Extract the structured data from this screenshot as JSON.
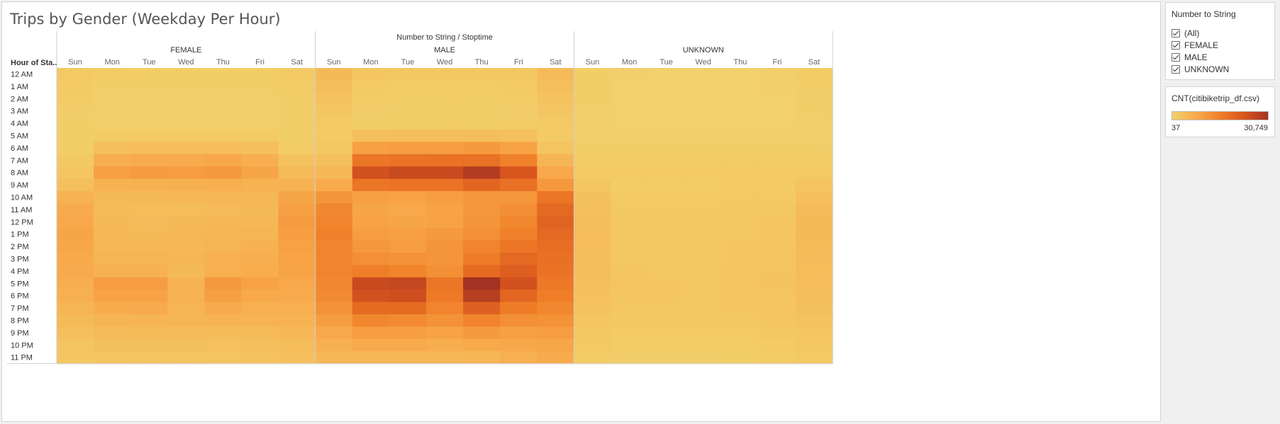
{
  "title": "Trips by Gender (Weekday Per Hour)",
  "chart_data": {
    "type": "heatmap",
    "title": "Trips by Gender (Weekday Per Hour)",
    "column_header": "Number to String / Stoptime",
    "row_header": "Hour of Sta..",
    "groups": [
      "FEMALE",
      "MALE",
      "UNKNOWN"
    ],
    "days": [
      "Sun",
      "Mon",
      "Tue",
      "Wed",
      "Thu",
      "Fri",
      "Sat"
    ],
    "hours": [
      "12 AM",
      "1 AM",
      "2 AM",
      "3 AM",
      "4 AM",
      "5 AM",
      "6 AM",
      "7 AM",
      "8 AM",
      "9 AM",
      "10 AM",
      "11 AM",
      "12 PM",
      "1 PM",
      "2 PM",
      "3 PM",
      "4 PM",
      "5 PM",
      "6 PM",
      "7 PM",
      "8 PM",
      "9 PM",
      "10 PM",
      "11 PM"
    ],
    "value_range": [
      37,
      30749
    ],
    "values": {
      "FEMALE": [
        [
          1500,
          900,
          700,
          700,
          700,
          700,
          1300
        ],
        [
          1200,
          500,
          400,
          400,
          400,
          500,
          1000
        ],
        [
          900,
          300,
          300,
          300,
          300,
          300,
          700
        ],
        [
          600,
          200,
          200,
          200,
          200,
          200,
          500
        ],
        [
          400,
          300,
          300,
          300,
          300,
          300,
          400
        ],
        [
          500,
          1200,
          1300,
          1300,
          1300,
          1200,
          500
        ],
        [
          700,
          3500,
          3800,
          3800,
          3900,
          3500,
          1000
        ],
        [
          1500,
          7000,
          7500,
          7500,
          8000,
          6800,
          2800
        ],
        [
          2300,
          9500,
          10200,
          10000,
          10800,
          8500,
          4300
        ],
        [
          3500,
          6000,
          6300,
          6500,
          6800,
          6000,
          5800
        ],
        [
          6000,
          4500,
          4500,
          4800,
          5000,
          4800,
          8500
        ],
        [
          7500,
          4300,
          4000,
          4000,
          4400,
          4500,
          9500
        ],
        [
          8000,
          4500,
          4200,
          4500,
          5000,
          5000,
          10200
        ],
        [
          8500,
          4800,
          4500,
          4800,
          5200,
          5500,
          9800
        ],
        [
          8300,
          5000,
          4800,
          5000,
          5500,
          6300,
          9200
        ],
        [
          7800,
          5500,
          5500,
          5200,
          6200,
          7000,
          8900
        ],
        [
          7500,
          6300,
          6200,
          4500,
          6500,
          7200,
          8700
        ],
        [
          7000,
          10000,
          10000,
          5800,
          10800,
          9000,
          8000
        ],
        [
          6500,
          9000,
          9000,
          5900,
          9500,
          7800,
          7500
        ],
        [
          5500,
          7200,
          7500,
          5700,
          7500,
          6800,
          6800
        ],
        [
          4500,
          5500,
          5700,
          5500,
          5800,
          5800,
          5800
        ],
        [
          3500,
          4200,
          4300,
          4200,
          4300,
          4300,
          4800
        ],
        [
          2500,
          3200,
          3200,
          3200,
          3300,
          3500,
          4000
        ],
        [
          2000,
          2200,
          2300,
          2300,
          2400,
          2800,
          3300
        ]
      ],
      "MALE": [
        [
          4500,
          2000,
          1600,
          1600,
          1600,
          1700,
          4200
        ],
        [
          3600,
          1200,
          1000,
          1000,
          1000,
          1200,
          3500
        ],
        [
          2800,
          800,
          700,
          700,
          700,
          800,
          2700
        ],
        [
          2000,
          600,
          500,
          500,
          500,
          600,
          2000
        ],
        [
          1400,
          700,
          700,
          700,
          700,
          800,
          1400
        ],
        [
          1300,
          3500,
          3700,
          3700,
          3700,
          3300,
          1300
        ],
        [
          1800,
          9500,
          10000,
          10000,
          10500,
          9000,
          2500
        ],
        [
          3500,
          17000,
          17500,
          17800,
          18000,
          15000,
          5500
        ],
        [
          4800,
          24000,
          25500,
          25500,
          28500,
          23000,
          8000
        ],
        [
          7500,
          17000,
          17500,
          17500,
          20000,
          18000,
          11000
        ],
        [
          11500,
          9500,
          9000,
          10000,
          11000,
          11000,
          17000
        ],
        [
          14000,
          8500,
          8000,
          9000,
          11000,
          12500,
          19500
        ],
        [
          14500,
          9000,
          8500,
          9000,
          11500,
          14000,
          20500
        ],
        [
          15000,
          10000,
          9500,
          10500,
          12500,
          15000,
          19500
        ],
        [
          14500,
          11000,
          10000,
          11500,
          14500,
          17000,
          18500
        ],
        [
          14500,
          12500,
          12000,
          11500,
          16000,
          19500,
          18000
        ],
        [
          14500,
          15500,
          14500,
          12500,
          19000,
          21500,
          17500
        ],
        [
          14000,
          25500,
          26000,
          17000,
          30749,
          24000,
          16500
        ],
        [
          13500,
          24000,
          24500,
          16500,
          28000,
          20000,
          15500
        ],
        [
          12000,
          19000,
          19000,
          14500,
          21000,
          16000,
          14000
        ],
        [
          10000,
          14000,
          13500,
          12000,
          14500,
          12500,
          12000
        ],
        [
          8000,
          10000,
          10000,
          9000,
          10500,
          9500,
          10000
        ],
        [
          6500,
          7500,
          7500,
          7000,
          7800,
          8000,
          8500
        ],
        [
          5000,
          5000,
          5000,
          5000,
          5200,
          6500,
          7500
        ]
      ],
      "UNKNOWN": [
        [
          700,
          150,
          130,
          120,
          130,
          200,
          900
        ],
        [
          500,
          80,
          60,
          60,
          60,
          150,
          700
        ],
        [
          400,
          50,
          40,
          40,
          40,
          100,
          550
        ],
        [
          300,
          40,
          37,
          37,
          37,
          60,
          400
        ],
        [
          200,
          60,
          50,
          50,
          50,
          60,
          250
        ],
        [
          250,
          200,
          200,
          200,
          200,
          200,
          250
        ],
        [
          400,
          450,
          450,
          450,
          450,
          450,
          400
        ],
        [
          800,
          900,
          950,
          950,
          1000,
          900,
          800
        ],
        [
          1300,
          1200,
          1300,
          1300,
          1400,
          1200,
          1500
        ],
        [
          2000,
          1100,
          1100,
          1100,
          1200,
          1300,
          2500
        ],
        [
          3000,
          1300,
          1300,
          1300,
          1400,
          1500,
          3500
        ],
        [
          3500,
          1500,
          1500,
          1500,
          1600,
          1800,
          4200
        ],
        [
          3700,
          1700,
          1600,
          1600,
          1800,
          2100,
          4500
        ],
        [
          3800,
          1800,
          1700,
          1700,
          1900,
          2300,
          4500
        ],
        [
          3800,
          1800,
          1700,
          1700,
          2000,
          2400,
          4300
        ],
        [
          3700,
          1900,
          1800,
          1700,
          2100,
          2500,
          4200
        ],
        [
          3600,
          2000,
          1900,
          1800,
          2200,
          2500,
          4000
        ],
        [
          3500,
          2200,
          2100,
          1900,
          2300,
          2600,
          3800
        ],
        [
          3300,
          2100,
          2000,
          1900,
          2200,
          2500,
          3600
        ],
        [
          2800,
          1900,
          1900,
          1800,
          2000,
          2300,
          3200
        ],
        [
          2300,
          1600,
          1600,
          1600,
          1700,
          2000,
          2800
        ],
        [
          1800,
          1200,
          1200,
          1200,
          1300,
          1600,
          2300
        ],
        [
          1400,
          900,
          900,
          900,
          1000,
          1300,
          1900
        ],
        [
          1000,
          600,
          600,
          600,
          700,
          1000,
          1500
        ]
      ]
    },
    "color_scale": [
      "#f2d06b",
      "#f8aa4b",
      "#f07f28",
      "#d9551e",
      "#a33222"
    ]
  },
  "filter": {
    "title": "Number to String",
    "items": [
      {
        "label": "(All)",
        "checked": true
      },
      {
        "label": "FEMALE",
        "checked": true
      },
      {
        "label": "MALE",
        "checked": true
      },
      {
        "label": "UNKNOWN",
        "checked": true
      }
    ]
  },
  "legend": {
    "title": "CNT(citibiketrip_df.csv)",
    "min_label": "37",
    "max_label": "30,749"
  }
}
